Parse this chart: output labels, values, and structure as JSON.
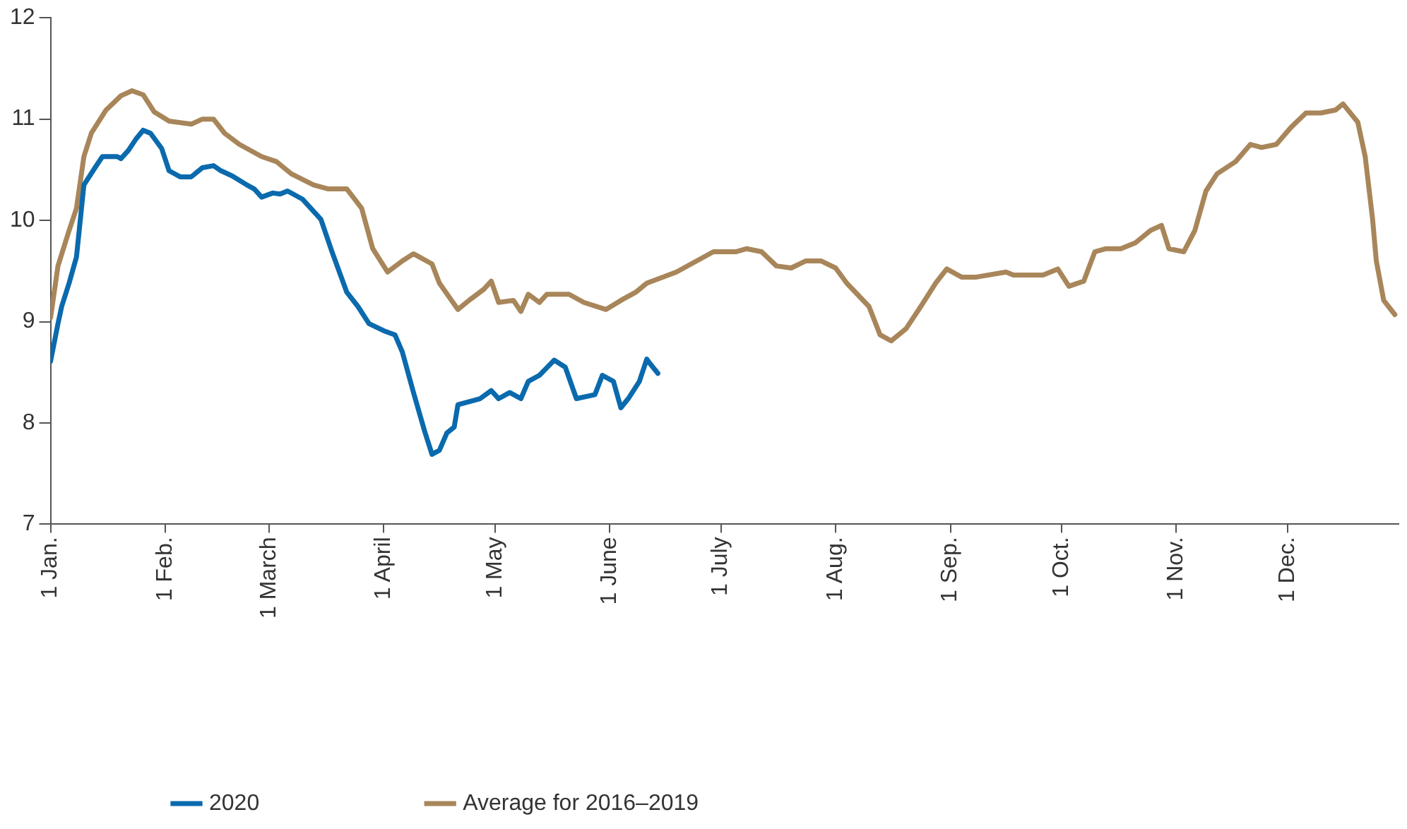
{
  "chart_data": {
    "type": "line",
    "xlim": [
      "--01-01",
      "--12-31"
    ],
    "xticks": [
      {
        "value": "--01-01",
        "label": "1 Jan."
      },
      {
        "value": "--02-01",
        "label": "1 Feb."
      },
      {
        "value": "--03-01",
        "label": "1 March"
      },
      {
        "value": "--04-01",
        "label": "1 April"
      },
      {
        "value": "--05-01",
        "label": "1 May"
      },
      {
        "value": "--06-01",
        "label": "1 June"
      },
      {
        "value": "--07-01",
        "label": "1 July"
      },
      {
        "value": "--08-01",
        "label": "1 Aug."
      },
      {
        "value": "--09-01",
        "label": "1 Sep."
      },
      {
        "value": "--10-01",
        "label": "1 Oct."
      },
      {
        "value": "--11-01",
        "label": "1 Nov."
      },
      {
        "value": "--12-01",
        "label": "1 Dec."
      }
    ],
    "ylim": [
      7,
      12
    ],
    "yticks": [
      7,
      8,
      9,
      10,
      11,
      12
    ],
    "grid": false,
    "legend": "bottom",
    "marker": "none",
    "line_style": "solid",
    "series": [
      {
        "name": "2020",
        "color": "#0a6aad",
        "x": [
          "--01-01",
          "--01-03",
          "--01-04",
          "--01-06",
          "--01-08",
          "--01-10",
          "--01-13",
          "--01-15",
          "--01-19",
          "--01-20",
          "--01-22",
          "--01-24",
          "--01-26",
          "--01-28",
          "--01-31",
          "--02-02",
          "--02-05",
          "--02-08",
          "--02-11",
          "--02-14",
          "--02-16",
          "--02-19",
          "--02-23",
          "--02-25",
          "--02-27",
          "--03-02",
          "--03-04",
          "--03-06",
          "--03-10",
          "--03-15",
          "--03-18",
          "--03-22",
          "--03-25",
          "--03-28",
          "--04-01",
          "--04-04",
          "--04-06",
          "--04-09",
          "--04-12",
          "--04-14",
          "--04-16",
          "--04-18",
          "--04-20",
          "--04-21",
          "--04-24",
          "--04-27",
          "--04-30",
          "--05-02",
          "--05-05",
          "--05-08",
          "--05-10",
          "--05-13",
          "--05-17",
          "--05-20",
          "--05-23",
          "--05-28",
          "--05-30",
          "--06-02",
          "--06-04",
          "--06-06",
          "--06-09",
          "--06-11",
          "--06-12",
          "--06-14"
        ],
        "values": [
          8.61,
          8.98,
          9.15,
          9.38,
          9.64,
          10.35,
          10.52,
          10.63,
          10.63,
          10.61,
          10.69,
          10.8,
          10.89,
          10.86,
          10.71,
          10.49,
          10.43,
          10.43,
          10.52,
          10.54,
          10.49,
          10.44,
          10.35,
          10.31,
          10.23,
          10.27,
          10.26,
          10.29,
          10.21,
          10.01,
          9.69,
          9.29,
          9.15,
          8.98,
          8.91,
          8.87,
          8.7,
          8.3,
          7.92,
          7.69,
          7.73,
          7.9,
          7.96,
          8.18,
          8.21,
          8.24,
          8.32,
          8.24,
          8.3,
          8.24,
          8.41,
          8.47,
          8.62,
          8.55,
          8.24,
          8.28,
          8.47,
          8.41,
          8.15,
          8.24,
          8.41,
          8.63,
          8.58,
          8.49
        ]
      },
      {
        "name": "Average for 2016–2019",
        "color": "#a8865a",
        "x": [
          "--01-01",
          "--01-03",
          "--01-06",
          "--01-08",
          "--01-10",
          "--01-12",
          "--01-16",
          "--01-20",
          "--01-23",
          "--01-26",
          "--01-29",
          "--02-02",
          "--02-08",
          "--02-11",
          "--02-14",
          "--02-17",
          "--02-21",
          "--02-27",
          "--03-03",
          "--03-07",
          "--03-13",
          "--03-17",
          "--03-22",
          "--03-26",
          "--03-29",
          "--04-02",
          "--04-06",
          "--04-09",
          "--04-14",
          "--04-16",
          "--04-21",
          "--04-24",
          "--04-28",
          "--04-30",
          "--05-02",
          "--05-06",
          "--05-08",
          "--05-10",
          "--05-13",
          "--05-15",
          "--05-21",
          "--05-25",
          "--05-31",
          "--06-04",
          "--06-08",
          "--06-11",
          "--06-19",
          "--06-23",
          "--06-29",
          "--07-05",
          "--07-08",
          "--07-12",
          "--07-16",
          "--07-20",
          "--07-24",
          "--07-28",
          "--08-01",
          "--08-04",
          "--08-10",
          "--08-13",
          "--08-16",
          "--08-20",
          "--08-24",
          "--08-28",
          "--08-31",
          "--09-04",
          "--09-08",
          "--09-16",
          "--09-18",
          "--09-26",
          "--09-30",
          "--10-03",
          "--10-07",
          "--10-10",
          "--10-13",
          "--10-17",
          "--10-21",
          "--10-25",
          "--10-28",
          "--10-30",
          "--11-03",
          "--11-06",
          "--11-09",
          "--11-12",
          "--11-17",
          "--11-21",
          "--11-24",
          "--11-28",
          "--12-02",
          "--12-06",
          "--12-10",
          "--12-14",
          "--12-16",
          "--12-20",
          "--12-22",
          "--12-24",
          "--12-25",
          "--12-27",
          "--12-30"
        ],
        "values": [
          9.04,
          9.55,
          9.9,
          10.12,
          10.63,
          10.86,
          11.09,
          11.23,
          11.28,
          11.24,
          11.07,
          10.98,
          10.95,
          11.0,
          11.0,
          10.86,
          10.75,
          10.63,
          10.58,
          10.46,
          10.35,
          10.31,
          10.31,
          10.12,
          9.72,
          9.49,
          9.6,
          9.67,
          9.57,
          9.38,
          9.12,
          9.21,
          9.32,
          9.4,
          9.19,
          9.21,
          9.1,
          9.27,
          9.19,
          9.27,
          9.27,
          9.19,
          9.12,
          9.21,
          9.29,
          9.38,
          9.49,
          9.57,
          9.69,
          9.69,
          9.72,
          9.69,
          9.55,
          9.53,
          9.6,
          9.6,
          9.53,
          9.38,
          9.15,
          8.87,
          8.81,
          8.93,
          9.15,
          9.38,
          9.52,
          9.44,
          9.44,
          9.49,
          9.46,
          9.46,
          9.52,
          9.35,
          9.4,
          9.69,
          9.72,
          9.72,
          9.78,
          9.9,
          9.95,
          9.72,
          9.69,
          9.9,
          10.29,
          10.46,
          10.58,
          10.75,
          10.72,
          10.75,
          10.92,
          11.06,
          11.06,
          11.09,
          11.15,
          10.97,
          10.63,
          10.01,
          9.6,
          9.21,
          9.07
        ]
      }
    ]
  }
}
